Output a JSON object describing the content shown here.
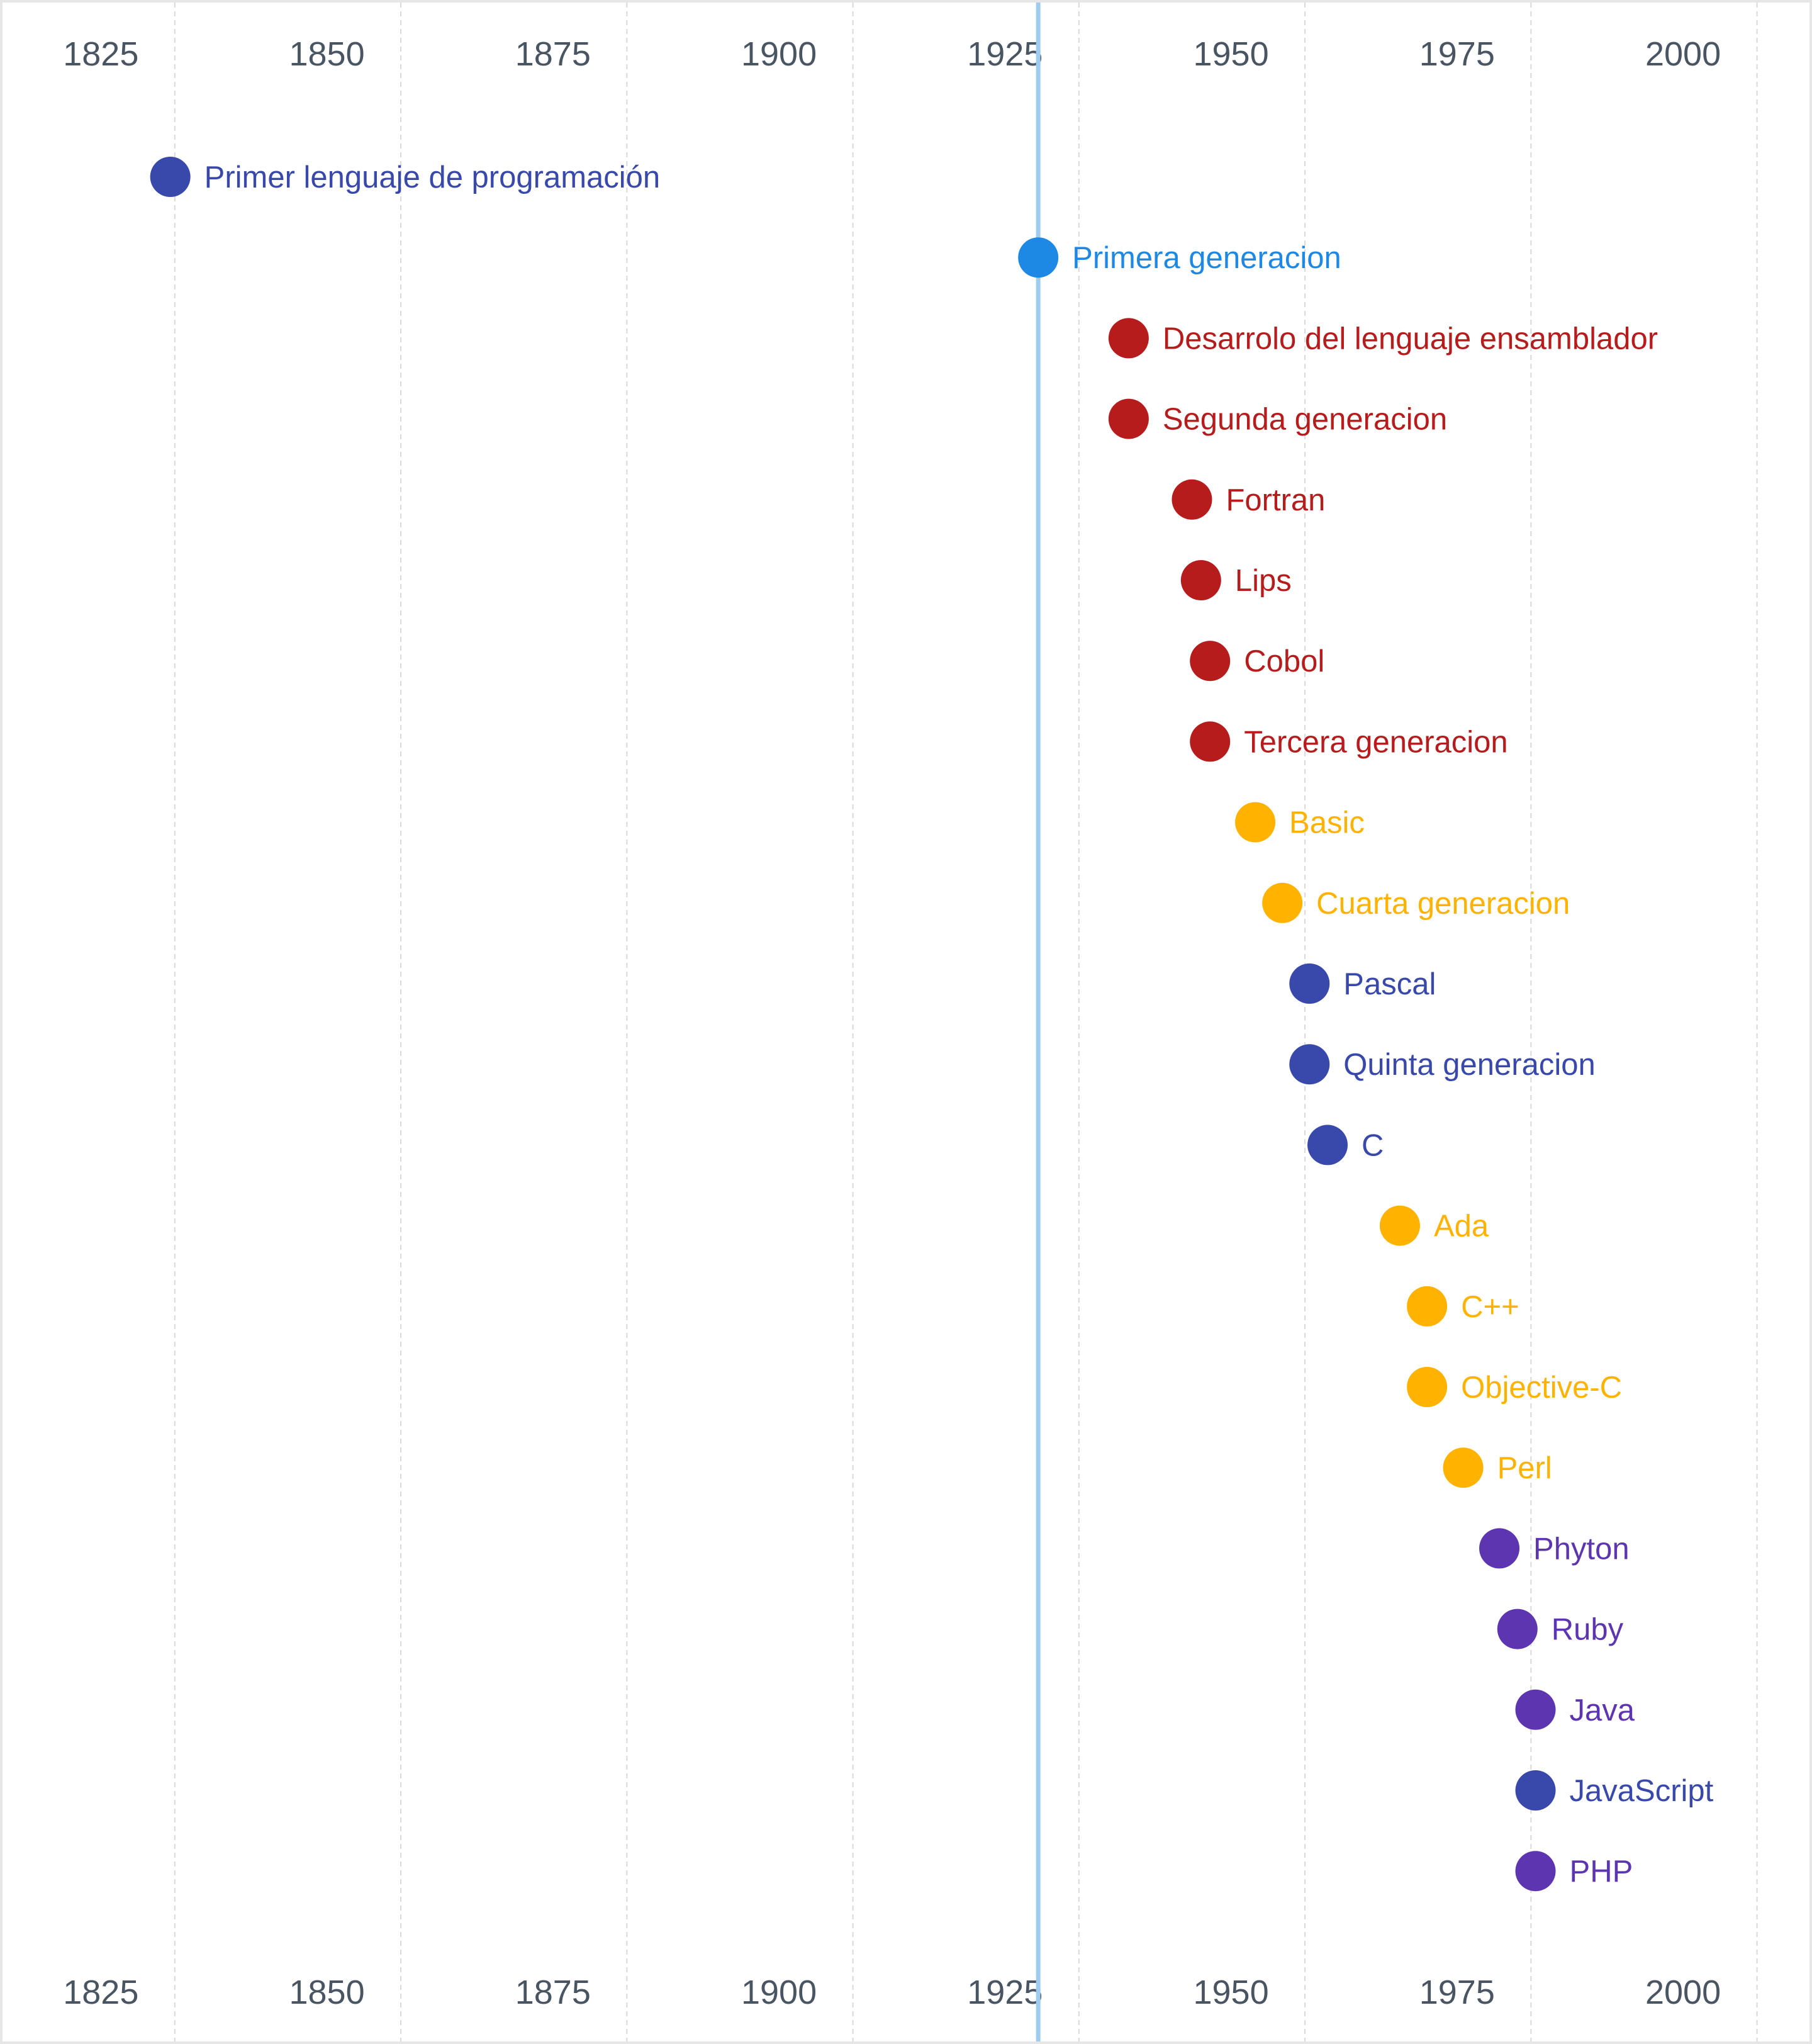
{
  "chart_data": {
    "type": "scatter",
    "xlim": [
      1819,
      2019
    ],
    "x_ticks": [
      "1825",
      "1850",
      "1875",
      "1900",
      "1925",
      "1950",
      "1975",
      "2000"
    ],
    "x_tick_values": [
      1825,
      1850,
      1875,
      1900,
      1925,
      1950,
      1975,
      2000
    ],
    "axis_positions": [
      "top",
      "bottom"
    ],
    "grid": true,
    "highlight_year": 1933,
    "colors": {
      "indigo": "#3949ab",
      "blue": "#1e88e5",
      "red": "#b71c1c",
      "amber": "#ffb300",
      "purple": "#5e35b1",
      "highlight_line": "#9fcbee",
      "tick_text": "#4a5563",
      "grid": "#d9d9d9"
    },
    "events": [
      {
        "label": "Primer lenguaje de programación",
        "year": 1837,
        "color": "#3949ab"
      },
      {
        "label": "Primera generacion",
        "year": 1933,
        "color": "#1e88e5"
      },
      {
        "label": "Desarrolo del lenguaje ensamblador",
        "year": 1943,
        "color": "#b71c1c"
      },
      {
        "label": "Segunda generacion",
        "year": 1943,
        "color": "#b71c1c"
      },
      {
        "label": "Fortran",
        "year": 1950,
        "color": "#b71c1c"
      },
      {
        "label": "Lips",
        "year": 1951,
        "color": "#b71c1c"
      },
      {
        "label": "Cobol",
        "year": 1952,
        "color": "#b71c1c"
      },
      {
        "label": "Tercera generacion",
        "year": 1952,
        "color": "#b71c1c"
      },
      {
        "label": "Basic",
        "year": 1957,
        "color": "#ffb300"
      },
      {
        "label": "Cuarta generacion",
        "year": 1960,
        "color": "#ffb300"
      },
      {
        "label": "Pascal",
        "year": 1963,
        "color": "#3949ab"
      },
      {
        "label": "Quinta generacion",
        "year": 1963,
        "color": "#3949ab"
      },
      {
        "label": "C",
        "year": 1965,
        "color": "#3949ab"
      },
      {
        "label": "Ada",
        "year": 1973,
        "color": "#ffb300"
      },
      {
        "label": "C++",
        "year": 1976,
        "color": "#ffb300"
      },
      {
        "label": "Objective-C",
        "year": 1976,
        "color": "#ffb300"
      },
      {
        "label": "Perl",
        "year": 1980,
        "color": "#ffb300"
      },
      {
        "label": "Phyton",
        "year": 1984,
        "color": "#5e35b1"
      },
      {
        "label": "Ruby",
        "year": 1986,
        "color": "#5e35b1"
      },
      {
        "label": "Java",
        "year": 1988,
        "color": "#5e35b1"
      },
      {
        "label": "JavaScript",
        "year": 1988,
        "color": "#3949ab"
      },
      {
        "label": "PHP",
        "year": 1988,
        "color": "#5e35b1"
      }
    ]
  }
}
